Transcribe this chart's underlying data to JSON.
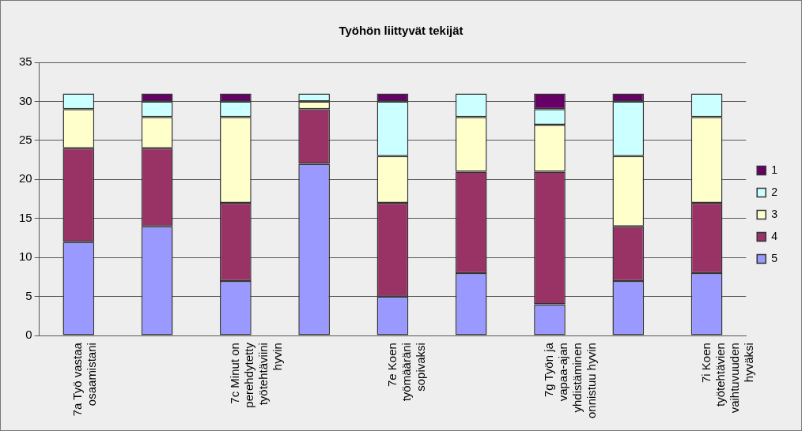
{
  "chart_data": {
    "type": "bar",
    "title": "Työhön liittyvät tekijät",
    "categories": [
      "7a Työ vastaa osaamistani",
      null,
      "7c Minut on perehdytetty työtehtäviini hyvin",
      null,
      "7e Koen työmääräni sopivaksi",
      null,
      "7g Työn ja vapaa-ajan yhdistäminen onnistuu hyvin",
      null,
      "7i Koen työtehtävien vaihtuvuuden hyväksi"
    ],
    "stacked": true,
    "ylim": [
      0,
      35
    ],
    "yticks": [
      0,
      5,
      10,
      15,
      20,
      25,
      30,
      35
    ],
    "grid": "y",
    "legend": "right",
    "series": [
      {
        "name": "5",
        "color": "#9999ff",
        "values": [
          12,
          14,
          7,
          22,
          5,
          8,
          4,
          7,
          8
        ]
      },
      {
        "name": "4",
        "color": "#993366",
        "values": [
          12,
          10,
          10,
          7,
          12,
          13,
          17,
          7,
          9
        ]
      },
      {
        "name": "3",
        "color": "#ffffcc",
        "values": [
          5,
          4,
          11,
          1,
          6,
          7,
          6,
          9,
          11
        ]
      },
      {
        "name": "2",
        "color": "#ccffff",
        "values": [
          2,
          2,
          2,
          1,
          7,
          3,
          2,
          7,
          3
        ]
      },
      {
        "name": "1",
        "color": "#660066",
        "values": [
          0,
          1,
          1,
          0,
          1,
          0,
          2,
          1,
          0
        ]
      }
    ]
  }
}
